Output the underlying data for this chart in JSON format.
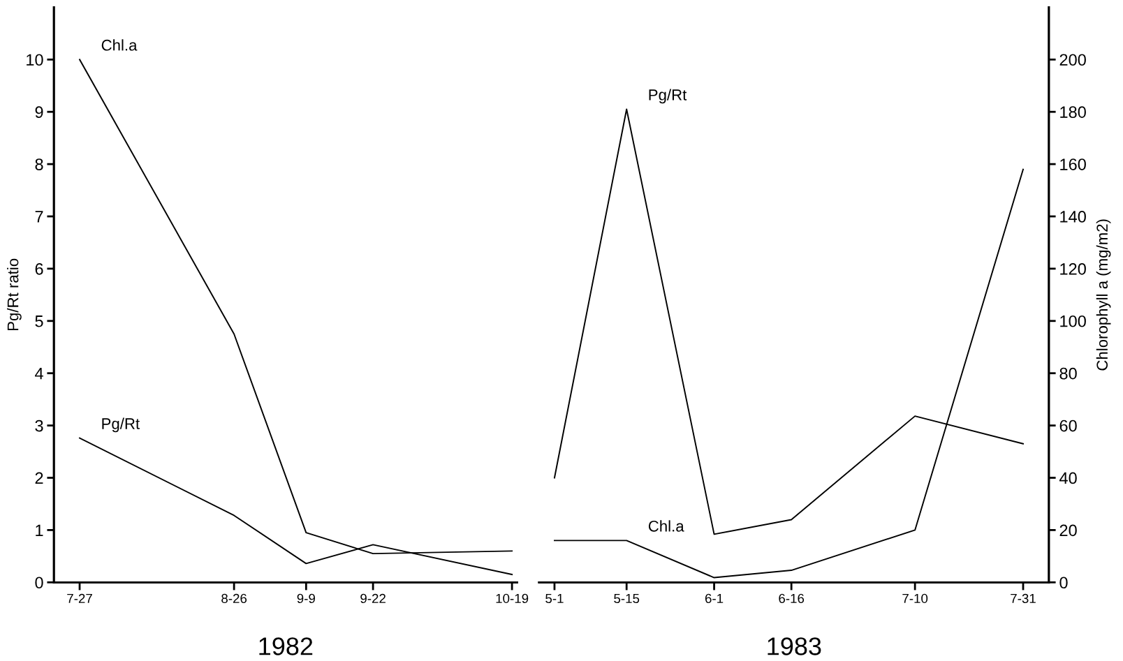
{
  "chart_data": [
    {
      "type": "line",
      "xlabel": "1982",
      "ylabel": "Pg/Rt ratio",
      "x": [
        "1982-07-27",
        "1982-08-26",
        "1982-09-09",
        "1982-09-22",
        "1982-10-19"
      ],
      "series": [
        {
          "name": "Pg/Rt",
          "color": "#000000",
          "values": [
            2.76,
            1.28,
            0.36,
            0.72,
            0.15
          ]
        },
        {
          "name": "Chl.a",
          "color": "#000000",
          "axis": "y2",
          "values": [
            200,
            95,
            19,
            11,
            12
          ]
        }
      ],
      "xlim": [
        "1982-07-22",
        "1982-10-20"
      ],
      "xticks": [
        {
          "value": "1982-07-27",
          "label": "7-27"
        },
        {
          "value": "1982-08-26",
          "label": "8-26"
        },
        {
          "value": "1982-09-09",
          "label": "9-9"
        },
        {
          "value": "1982-09-22",
          "label": "9-22"
        },
        {
          "value": "1982-10-19",
          "label": "10-19"
        }
      ],
      "ylim": [
        0,
        11
      ],
      "yticks": [
        0,
        1,
        2,
        3,
        4,
        5,
        6,
        7,
        8,
        9,
        10
      ],
      "y2lim": [
        0,
        220
      ]
    },
    {
      "type": "line",
      "xlabel": "1983",
      "y2label": "Chlorophyll a (mg/m2)",
      "x": [
        "1983-05-01",
        "1983-05-15",
        "1983-06-01",
        "1983-06-16",
        "1983-07-10",
        "1983-07-31"
      ],
      "series": [
        {
          "name": "Pg/Rt",
          "color": "#000000",
          "values": [
            2.0,
            9.05,
            0.92,
            1.2,
            3.18,
            2.65
          ]
        },
        {
          "name": "Chl.a",
          "color": "#000000",
          "axis": "y2",
          "values": [
            16,
            16,
            1.8,
            4.6,
            20,
            158
          ]
        }
      ],
      "xlim": [
        "1983-04-28",
        "1983-08-05"
      ],
      "xticks": [
        {
          "value": "1983-05-01",
          "label": "5-1"
        },
        {
          "value": "1983-05-15",
          "label": "5-15"
        },
        {
          "value": "1983-06-01",
          "label": "6-1"
        },
        {
          "value": "1983-06-16",
          "label": "6-16"
        },
        {
          "value": "1983-07-10",
          "label": "7-10"
        },
        {
          "value": "1983-07-31",
          "label": "7-31"
        }
      ],
      "ylim": [
        0,
        11
      ],
      "y2lim": [
        0,
        220
      ],
      "y2ticks": [
        0,
        20,
        40,
        60,
        80,
        100,
        120,
        140,
        160,
        180,
        200
      ]
    }
  ]
}
